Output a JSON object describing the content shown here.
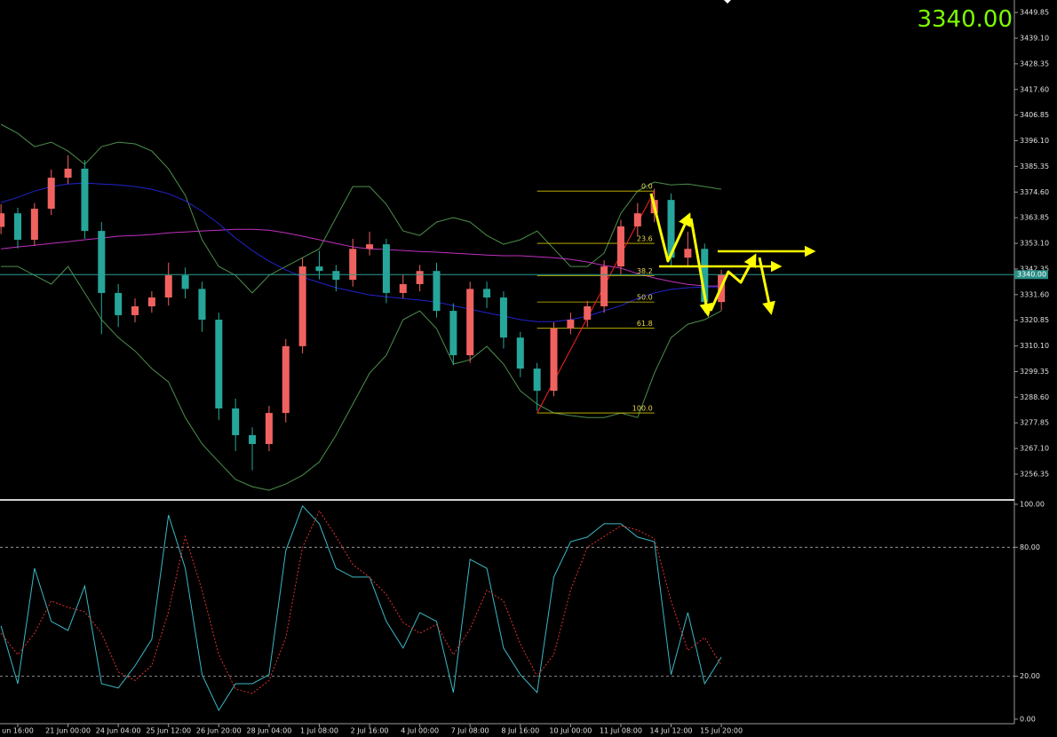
{
  "chart_data": [
    {
      "type": "candlestick",
      "current_price": {
        "value": 3340,
        "label": "3340.00"
      },
      "ylim": [
        3246.3,
        3455.1
      ],
      "yticks": [
        3449.85,
        {
          "value": 3439.1,
          "label": "3439.10"
        },
        3428.35,
        {
          "value": 3417.6,
          "label": "3417.60"
        },
        3406.85,
        {
          "value": 3396.1,
          "label": "3396.10"
        },
        3385.35,
        {
          "value": 3374.6,
          "label": "3374.60"
        },
        3363.85,
        {
          "value": 3353.1,
          "label": "3353.10"
        },
        3342.35,
        {
          "value": 3331.6,
          "label": "3331.60"
        },
        3320.85,
        {
          "value": 3310.1,
          "label": "3310.10"
        },
        3299.35,
        {
          "value": 3288.6,
          "label": "3288.60"
        },
        3277.85,
        {
          "value": 3267.1,
          "label": "3267.10"
        },
        3256.35
      ],
      "categories": [
        null,
        "un 16:00",
        null,
        null,
        "21 Jun 00:00",
        null,
        null,
        "24 Jun 04:00",
        null,
        null,
        "25 Jun 12:00",
        null,
        null,
        "26 Jun 20:00",
        null,
        null,
        "28 Jun 04:00",
        null,
        null,
        "1 Jul 08:00",
        null,
        null,
        "2 Jul 16:00",
        null,
        null,
        "4 Jul 00:00",
        null,
        null,
        "7 Jul 08:00",
        null,
        null,
        "8 Jul 16:00",
        null,
        null,
        "10 Jul 00:00",
        null,
        null,
        "11 Jul 08:00",
        null,
        null,
        "14 Jul 12:00",
        null,
        null,
        "15 Jul 20:00"
      ],
      "up_color": "#f0625f",
      "down_color": "#26a69a",
      "open": [
        3360.0,
        3365.7,
        3354.6,
        3367.6,
        3380.6,
        3384.4,
        3358.3,
        3332.3,
        3323.0,
        3326.7,
        3330.4,
        3339.7,
        3334.0,
        3321.1,
        3283.9,
        3272.7,
        3269.0,
        3282.0,
        3310.0,
        3343.4,
        3341.5,
        3337.8,
        3350.8,
        3352.7,
        3332.3,
        3336.0,
        3341.5,
        3324.8,
        3306.2,
        3334.0,
        3330.4,
        3313.6,
        3300.6,
        3291.3,
        3317.4,
        3321.1,
        3326.7,
        3343.4,
        3360.2,
        3365.7,
        3371.3,
        3347.1,
        3350.8,
        3328.5
      ],
      "high": [
        3369.5,
        3368.0,
        3370.0,
        3384.0,
        3390.0,
        3388.0,
        3362.0,
        3336.0,
        3330.0,
        3333.0,
        3345.0,
        3343.0,
        3337.0,
        3324.0,
        3288.0,
        3276.0,
        3285.0,
        3313.0,
        3347.0,
        3350.0,
        3344.0,
        3355.0,
        3358.0,
        3355.0,
        3340.0,
        3344.0,
        3345.0,
        3328.0,
        3337.0,
        3337.0,
        3333.0,
        3316.0,
        3303.0,
        3320.0,
        3324.0,
        3329.0,
        3346.0,
        3363.0,
        3370.0,
        3376.0,
        3374.0,
        3358.0,
        3353.0,
        3342.0
      ],
      "low": [
        3357.0,
        3351.0,
        3352.0,
        3365.0,
        3378.0,
        3355.0,
        3315.0,
        3318.0,
        3320.0,
        3324.0,
        3327.0,
        3330.0,
        3316.0,
        3279.0,
        3266.0,
        3258.0,
        3266.0,
        3278.0,
        3307.0,
        3338.0,
        3333.0,
        3335.0,
        3348.0,
        3328.0,
        3330.0,
        3333.0,
        3322.0,
        3302.0,
        3303.0,
        3326.0,
        3309.0,
        3297.0,
        3283.0,
        3289.0,
        3315.0,
        3318.0,
        3324.0,
        3340.0,
        3356.0,
        3362.0,
        3343.0,
        3343.0,
        3324.0,
        3325.0
      ],
      "close": [
        3365.7,
        3354.6,
        3367.6,
        3380.6,
        3384.4,
        3358.3,
        3332.3,
        3323.0,
        3326.7,
        3330.4,
        3339.7,
        3334.0,
        3321.1,
        3283.9,
        3272.7,
        3269.0,
        3282.0,
        3310.0,
        3343.4,
        3341.5,
        3337.8,
        3350.8,
        3352.7,
        3332.3,
        3336.0,
        3341.5,
        3324.8,
        3306.2,
        3334.0,
        3330.4,
        3313.6,
        3300.6,
        3291.3,
        3317.4,
        3321.1,
        3326.7,
        3343.4,
        3360.2,
        3365.7,
        3371.3,
        3347.1,
        3350.8,
        3328.5,
        3340.0
      ],
      "series": [
        {
          "color": "#4c8f4c",
          "values": [
            3403.0,
            3399.2,
            3393.6,
            3395.5,
            3391.8,
            3386.2,
            3393.6,
            3395.5,
            3394.8,
            3391.8,
            3384.3,
            3373.2,
            3354.6,
            3343.4,
            3339.7,
            3332.3,
            3339.7,
            3343.4,
            3347.1,
            3350.8,
            3363.9,
            3376.9,
            3376.9,
            3369.5,
            3358.3,
            3356.4,
            3362.0,
            3363.9,
            3362.0,
            3356.4,
            3352.7,
            3354.6,
            3358.3,
            3350.8,
            3343.4,
            3343.4,
            3349.0,
            3365.7,
            3375.0,
            3378.8,
            3377.6,
            3378.0,
            3376.9,
            3375.8
          ]
        },
        {
          "color": "#4c8f4c",
          "values": [
            3343.4,
            3343.4,
            3339.7,
            3336.0,
            3343.4,
            3332.3,
            3321.1,
            3313.6,
            3308.0,
            3300.6,
            3295.0,
            3280.1,
            3269.0,
            3261.5,
            3254.1,
            3251.1,
            3249.6,
            3252.2,
            3255.9,
            3261.5,
            3272.7,
            3285.7,
            3298.7,
            3306.2,
            3321.1,
            3324.8,
            3317.4,
            3302.5,
            3304.3,
            3309.9,
            3302.5,
            3291.3,
            3285.7,
            3282.0,
            3280.9,
            3280.1,
            3280.1,
            3282.0,
            3280.1,
            3298.7,
            3313.6,
            3319.2,
            3321.1,
            3324.8
          ]
        },
        {
          "color": "#c030c0",
          "values": [
            3350.8,
            3351.6,
            3352.3,
            3353.1,
            3353.8,
            3354.6,
            3355.3,
            3356.1,
            3356.4,
            3356.8,
            3357.5,
            3357.9,
            3358.3,
            3358.6,
            3359.0,
            3359.0,
            3358.6,
            3357.5,
            3356.1,
            3354.6,
            3353.1,
            3351.6,
            3350.8,
            3350.5,
            3350.1,
            3349.7,
            3349.4,
            3349.0,
            3348.6,
            3348.2,
            3347.9,
            3347.9,
            3347.5,
            3347.1,
            3346.4,
            3345.3,
            3343.8,
            3342.7,
            3340.4,
            3338.6,
            3337.1,
            3335.9,
            3335.2,
            3335.2
          ]
        },
        {
          "color": "#2323d0",
          "values": [
            3370.2,
            3372.4,
            3375.0,
            3376.9,
            3378.0,
            3378.4,
            3378.0,
            3377.6,
            3376.9,
            3375.8,
            3373.9,
            3370.9,
            3366.5,
            3361.3,
            3355.3,
            3350.1,
            3345.6,
            3341.9,
            3338.9,
            3336.7,
            3334.5,
            3333.0,
            3331.5,
            3330.7,
            3330.0,
            3329.3,
            3328.5,
            3327.0,
            3325.5,
            3324.0,
            3322.6,
            3321.1,
            3320.3,
            3320.3,
            3321.1,
            3322.6,
            3324.8,
            3327.0,
            3330.0,
            3332.3,
            3333.8,
            3334.5,
            3334.8,
            3334.8
          ]
        }
      ],
      "fibonacci": {
        "color": "#d4c400",
        "levels": [
          {
            "value": 0,
            "label": "0.0"
          },
          23.6,
          38.2,
          {
            "value": 50,
            "label": "50.0"
          },
          61.8,
          {
            "value": 100,
            "label": "100.0"
          }
        ],
        "prices": [
          3375.0,
          3353.1,
          3339.5,
          3328.5,
          3317.5,
          3282.0
        ]
      }
    },
    {
      "type": "line",
      "ylim": [
        -2.1,
        101.2
      ],
      "yticks": [
        {
          "value": 100,
          "label": "100.00"
        },
        {
          "value": 80,
          "label": "80.00"
        },
        {
          "value": 20,
          "label": "20.00"
        },
        {
          "value": 0,
          "label": "0.00"
        }
      ],
      "series": [
        {
          "color": "#3bb8c4",
          "dash": false,
          "values": [
            43.4,
            16.5,
            70.2,
            45.5,
            41.3,
            62.0,
            16.5,
            14.5,
            24.8,
            37.2,
            95.0,
            70.2,
            20.7,
            4.1,
            16.5,
            16.5,
            20.7,
            78.5,
            99.2,
            90.9,
            70.2,
            66.1,
            66.1,
            45.5,
            33.1,
            49.6,
            45.5,
            12.4,
            74.4,
            70.2,
            33.1,
            20.7,
            12.4,
            66.1,
            82.6,
            84.7,
            90.9,
            90.9,
            84.7,
            82.6,
            20.7,
            49.6,
            16.5,
            28.9
          ]
        },
        {
          "color": "#e03030",
          "dash": true,
          "values": [
            40.0,
            30.0,
            40.0,
            55.0,
            52.0,
            50.0,
            40.0,
            22.0,
            18.0,
            25.0,
            50.0,
            85.0,
            60.0,
            30.0,
            14.0,
            12.0,
            18.0,
            38.0,
            80.0,
            97.0,
            85.0,
            72.0,
            66.0,
            58.0,
            45.0,
            40.0,
            44.0,
            30.0,
            42.0,
            60.0,
            55.0,
            35.0,
            20.0,
            30.0,
            60.0,
            80.0,
            85.0,
            90.0,
            88.0,
            84.0,
            55.0,
            32.0,
            38.0,
            25.0
          ]
        }
      ]
    }
  ]
}
